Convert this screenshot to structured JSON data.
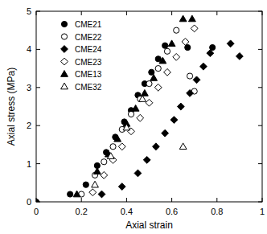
{
  "chart_data": {
    "type": "scatter",
    "x_label": "Axial strain",
    "y_label": "Axial stress (MPa)",
    "xlim": [
      0,
      1
    ],
    "ylim": [
      0,
      5
    ],
    "xticks": [
      0,
      0.2,
      0.4,
      0.6,
      0.8,
      1
    ],
    "yticks": [
      0,
      1,
      2,
      3,
      4,
      5
    ],
    "legend": "top-left",
    "grid": false,
    "series": [
      {
        "name": "CME21",
        "color": "#000000",
        "marker": "circle",
        "x": [
          0,
          0.15,
          0.22,
          0.27,
          0.31,
          0.35,
          0.39,
          0.42,
          0.45,
          0.48,
          0.51,
          0.54,
          0.57,
          0.67,
          0.78
        ],
        "values": [
          0,
          0.2,
          0.45,
          0.95,
          1.3,
          1.7,
          2.1,
          2.4,
          2.8,
          3.1,
          3.4,
          3.75,
          4.1,
          4.05,
          4.05
        ]
      },
      {
        "name": "CME22",
        "color": "#000000",
        "marker": "open-circle",
        "x": [
          0.2,
          0.26,
          0.3,
          0.34,
          0.38,
          0.42,
          0.46,
          0.5,
          0.54,
          0.58,
          0.62,
          0.68,
          0.7
        ],
        "values": [
          0.2,
          0.7,
          1.05,
          1.45,
          1.9,
          2.3,
          2.7,
          3.1,
          3.5,
          3.95,
          4.5,
          3.3,
          2.9
        ]
      },
      {
        "name": "CME24",
        "color": "#000000",
        "marker": "diamond",
        "x": [
          0.29,
          0.38,
          0.45,
          0.49,
          0.53,
          0.57,
          0.61,
          0.64,
          0.68,
          0.71,
          0.74,
          0.77,
          0.86,
          0.9
        ],
        "values": [
          0.2,
          0.4,
          0.75,
          1.1,
          1.45,
          1.8,
          2.15,
          2.5,
          2.85,
          3.2,
          3.55,
          3.9,
          4.15,
          3.82
        ]
      },
      {
        "name": "CME23",
        "color": "#000000",
        "marker": "open-diamond",
        "x": [
          0.25,
          0.3,
          0.34,
          0.38,
          0.42,
          0.46,
          0.5,
          0.54,
          0.58,
          0.62,
          0.66,
          0.7
        ],
        "values": [
          0.25,
          0.7,
          1.1,
          1.45,
          1.85,
          2.2,
          2.6,
          3.0,
          3.4,
          3.8,
          4.2,
          4.55
        ]
      },
      {
        "name": "CME13",
        "color": "#000000",
        "marker": "triangle",
        "x": [
          0.18,
          0.27,
          0.32,
          0.36,
          0.4,
          0.44,
          0.48,
          0.52,
          0.56,
          0.6,
          0.65,
          0.69
        ],
        "values": [
          0.2,
          0.8,
          1.25,
          1.65,
          2.05,
          2.45,
          2.85,
          3.25,
          3.7,
          4.15,
          4.8,
          4.8
        ]
      },
      {
        "name": "CME32",
        "color": "#000000",
        "marker": "open-triangle",
        "x": [
          0.26,
          0.33,
          0.4,
          0.47,
          0.65
        ],
        "values": [
          0.45,
          1.2,
          1.95,
          2.7,
          1.45
        ]
      }
    ]
  }
}
